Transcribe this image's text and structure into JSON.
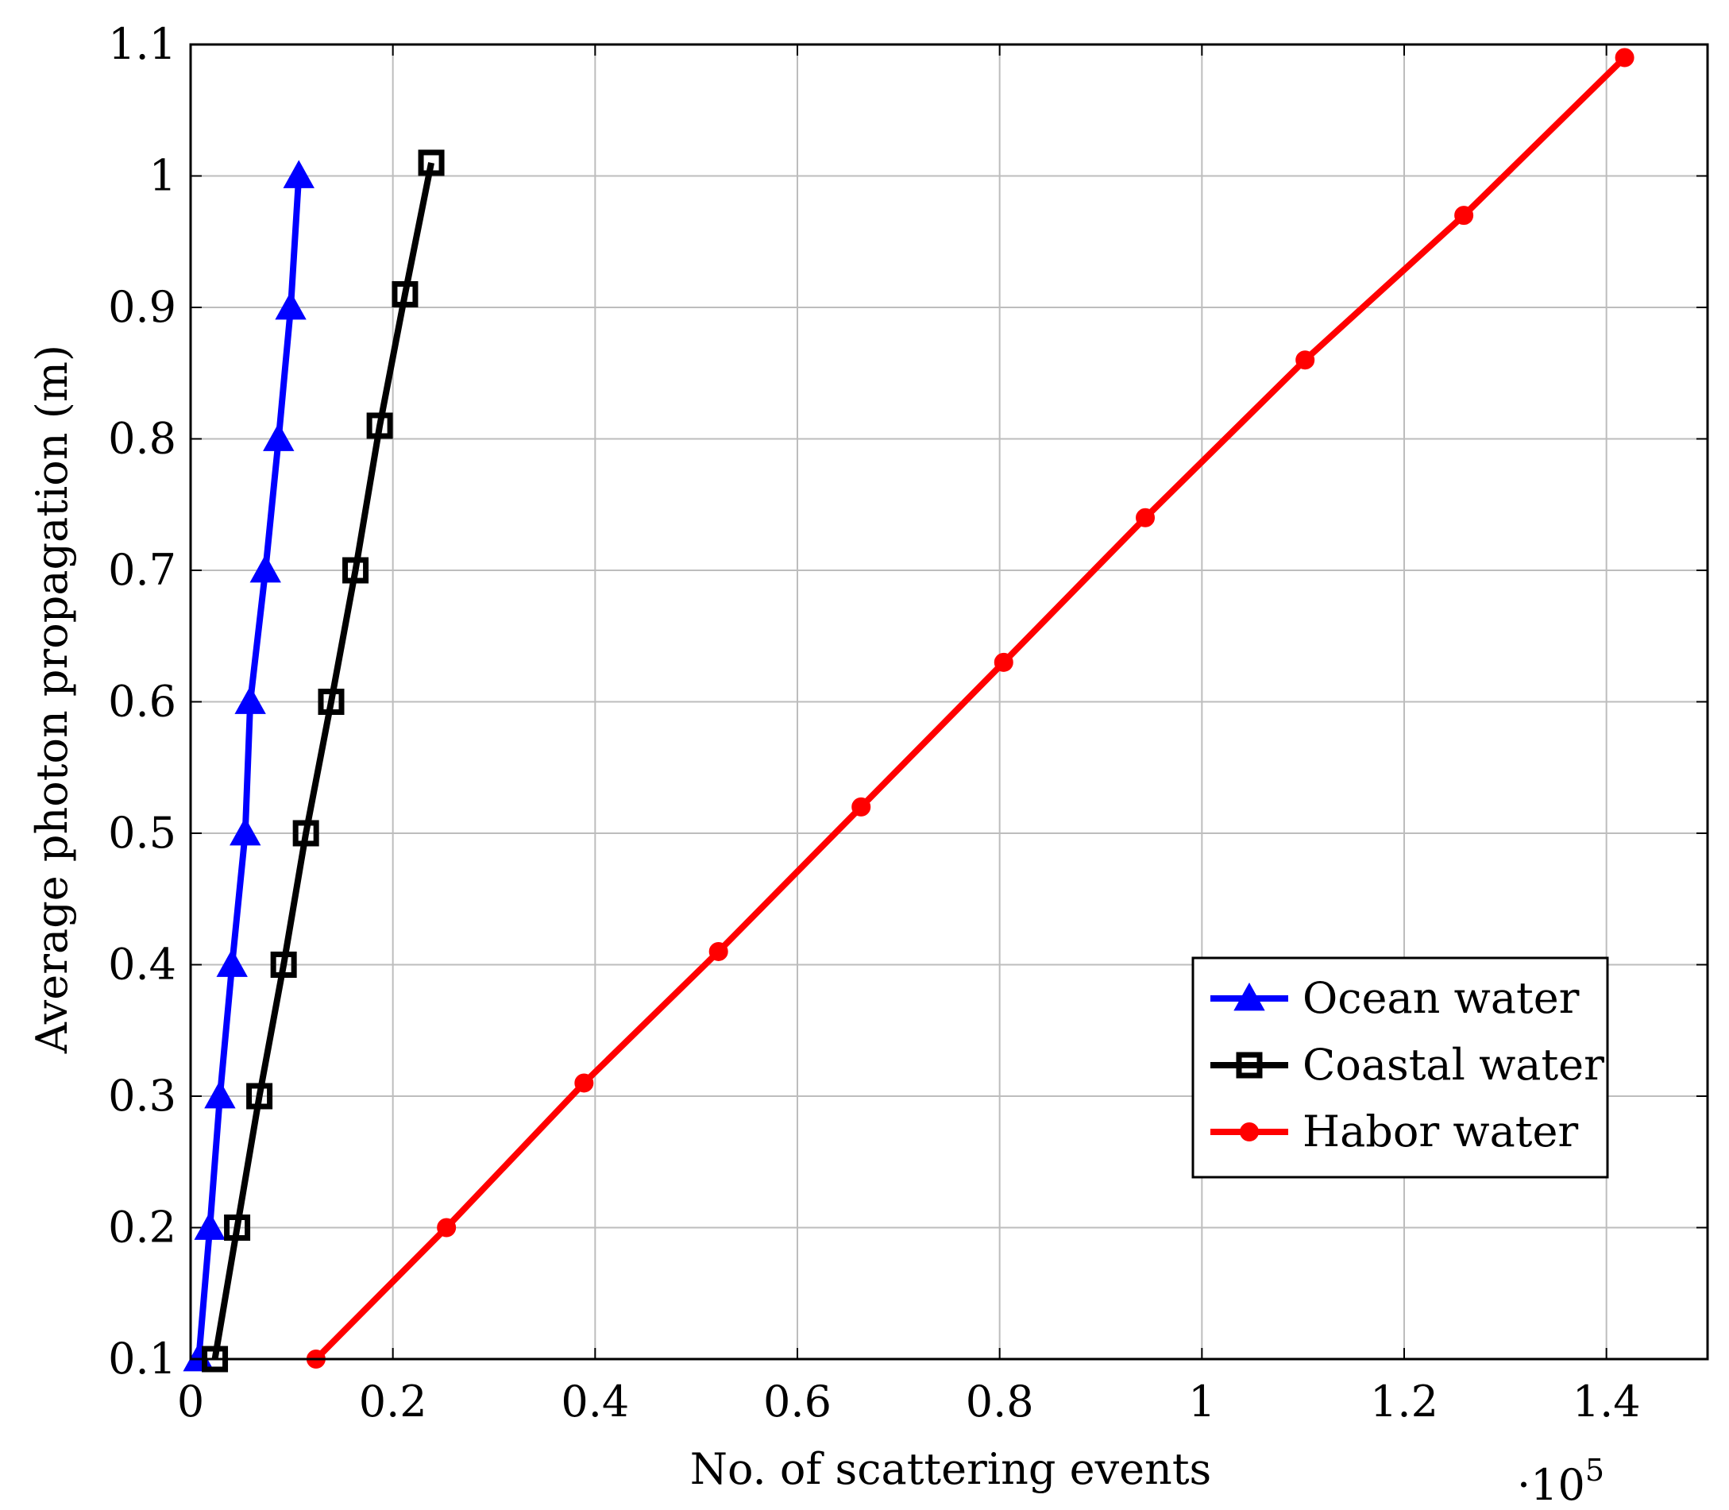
{
  "chart_data": {
    "type": "line",
    "title": "",
    "xlabel": "No. of scattering events",
    "ylabel": "Average photon propagation (m)",
    "x_multiplier_label": "·10",
    "x_multiplier_exponent": "5",
    "xlim": [
      0,
      1.5
    ],
    "ylim": [
      0.1,
      1.1
    ],
    "x_ticks": [
      0,
      0.2,
      0.4,
      0.6,
      0.8,
      1,
      1.2,
      1.4
    ],
    "x_tick_labels": [
      "0",
      "0.2",
      "0.4",
      "0.6",
      "0.8",
      "1",
      "1.2",
      "1.4"
    ],
    "y_ticks": [
      0.1,
      0.2,
      0.3,
      0.4,
      0.5,
      0.6,
      0.7,
      0.8,
      0.9,
      1,
      1.1
    ],
    "y_tick_labels": [
      "0.1",
      "0.2",
      "0.3",
      "0.4",
      "0.5",
      "0.6",
      "0.7",
      "0.8",
      "0.9",
      "1",
      "1.1"
    ],
    "grid": true,
    "legend_position": "lower-right",
    "series": [
      {
        "name": "Ocean water",
        "color": "#0000ff",
        "marker": "triangle",
        "x": [
          0.008,
          0.019,
          0.029,
          0.041,
          0.054,
          0.059,
          0.074,
          0.087,
          0.099,
          0.107
        ],
        "y": [
          0.1,
          0.2,
          0.3,
          0.4,
          0.5,
          0.6,
          0.7,
          0.8,
          0.9,
          1.0
        ]
      },
      {
        "name": "Coastal water",
        "color": "#000000",
        "marker": "square",
        "x": [
          0.024,
          0.046,
          0.068,
          0.092,
          0.114,
          0.139,
          0.163,
          0.187,
          0.212,
          0.238
        ],
        "y": [
          0.1,
          0.2,
          0.3,
          0.4,
          0.5,
          0.6,
          0.7,
          0.81,
          0.91,
          1.01
        ]
      },
      {
        "name": "Habor water",
        "color": "#ff0000",
        "marker": "circle",
        "x": [
          0.124,
          0.253,
          0.389,
          0.522,
          0.663,
          0.804,
          0.944,
          1.102,
          1.259,
          1.418
        ],
        "y": [
          0.1,
          0.2,
          0.31,
          0.41,
          0.52,
          0.63,
          0.74,
          0.86,
          0.97,
          1.09
        ]
      }
    ]
  }
}
